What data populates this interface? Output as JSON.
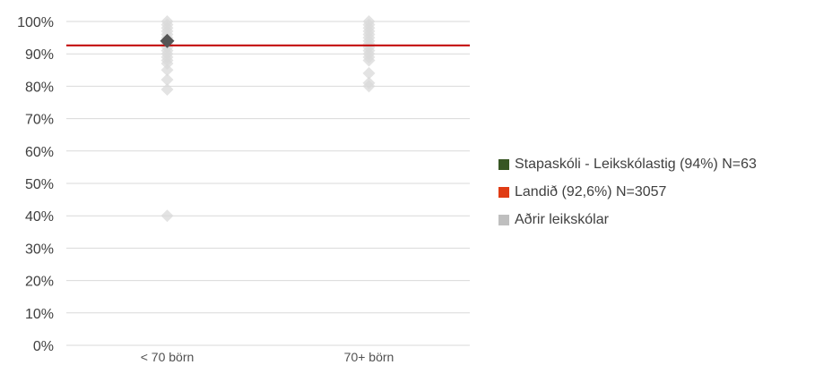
{
  "chart_data": {
    "type": "scatter",
    "categories": [
      "< 70 börn",
      "70+ börn"
    ],
    "yticks": [
      "100%",
      "90%",
      "80%",
      "70%",
      "60%",
      "50%",
      "40%",
      "30%",
      "20%",
      "10%",
      "0%"
    ],
    "ylim": [
      0,
      100
    ],
    "grid": true,
    "legend_position": "right",
    "reference_line": {
      "label": "Landið (92,6%) N=3057",
      "value": 92.6,
      "color": "#c00000"
    },
    "highlight": {
      "label": "Stapaskóli - Leikskólastig (94%) N=63",
      "category": "< 70 börn",
      "value": 94,
      "color": "#555555"
    },
    "series": [
      {
        "name": "Aðrir leikskólar",
        "category": "< 70 börn",
        "values": [
          100,
          99,
          98,
          97,
          96,
          95,
          94,
          93,
          92,
          91,
          90,
          89,
          88,
          87,
          85,
          82,
          79,
          40
        ]
      },
      {
        "name": "Aðrir leikskólar",
        "category": "70+ börn",
        "values": [
          100,
          99,
          98,
          97,
          96,
          95,
          94,
          93,
          92,
          91,
          90,
          89,
          88,
          84,
          81,
          80
        ]
      }
    ],
    "colors": {
      "others": "#d9d9d9",
      "grid": "#d9d9d9"
    }
  },
  "legend": [
    {
      "label": "Stapaskóli - Leikskólastig (94%) N=63",
      "color": "#375623"
    },
    {
      "label": "Landið (92,6%) N=3057",
      "color": "#e03c14"
    },
    {
      "label": "Aðrir leikskólar",
      "color": "#bfbfbf"
    }
  ]
}
